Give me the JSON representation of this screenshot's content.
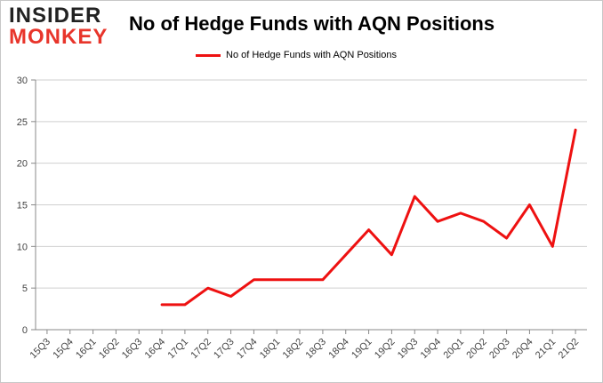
{
  "logo": {
    "line1": "INSIDER",
    "line2": "MONKEY"
  },
  "colors": {
    "series": "#ee1111",
    "grid": "#cfcfcf",
    "axis": "#888888",
    "logo_red": "#e8352b"
  },
  "chart_data": {
    "type": "line",
    "title": "No of Hedge Funds with AQN Positions",
    "xlabel": "",
    "ylabel": "",
    "ylim": [
      0,
      30
    ],
    "yticks": [
      0,
      5,
      10,
      15,
      20,
      25,
      30
    ],
    "grid": "horizontal",
    "legend_position": "top-center",
    "categories": [
      "15Q3",
      "15Q4",
      "16Q1",
      "16Q2",
      "16Q3",
      "16Q4",
      "17Q1",
      "17Q2",
      "17Q3",
      "17Q4",
      "18Q1",
      "18Q2",
      "18Q3",
      "18Q4",
      "19Q1",
      "19Q2",
      "19Q3",
      "19Q4",
      "20Q1",
      "20Q2",
      "20Q3",
      "20Q4",
      "21Q1",
      "21Q2"
    ],
    "series": [
      {
        "name": "No of Hedge Funds with AQN Positions",
        "values": [
          null,
          null,
          null,
          null,
          null,
          3,
          3,
          5,
          4,
          6,
          6,
          6,
          6,
          9,
          12,
          9,
          16,
          13,
          14,
          13,
          11,
          15,
          10,
          24
        ]
      }
    ]
  }
}
